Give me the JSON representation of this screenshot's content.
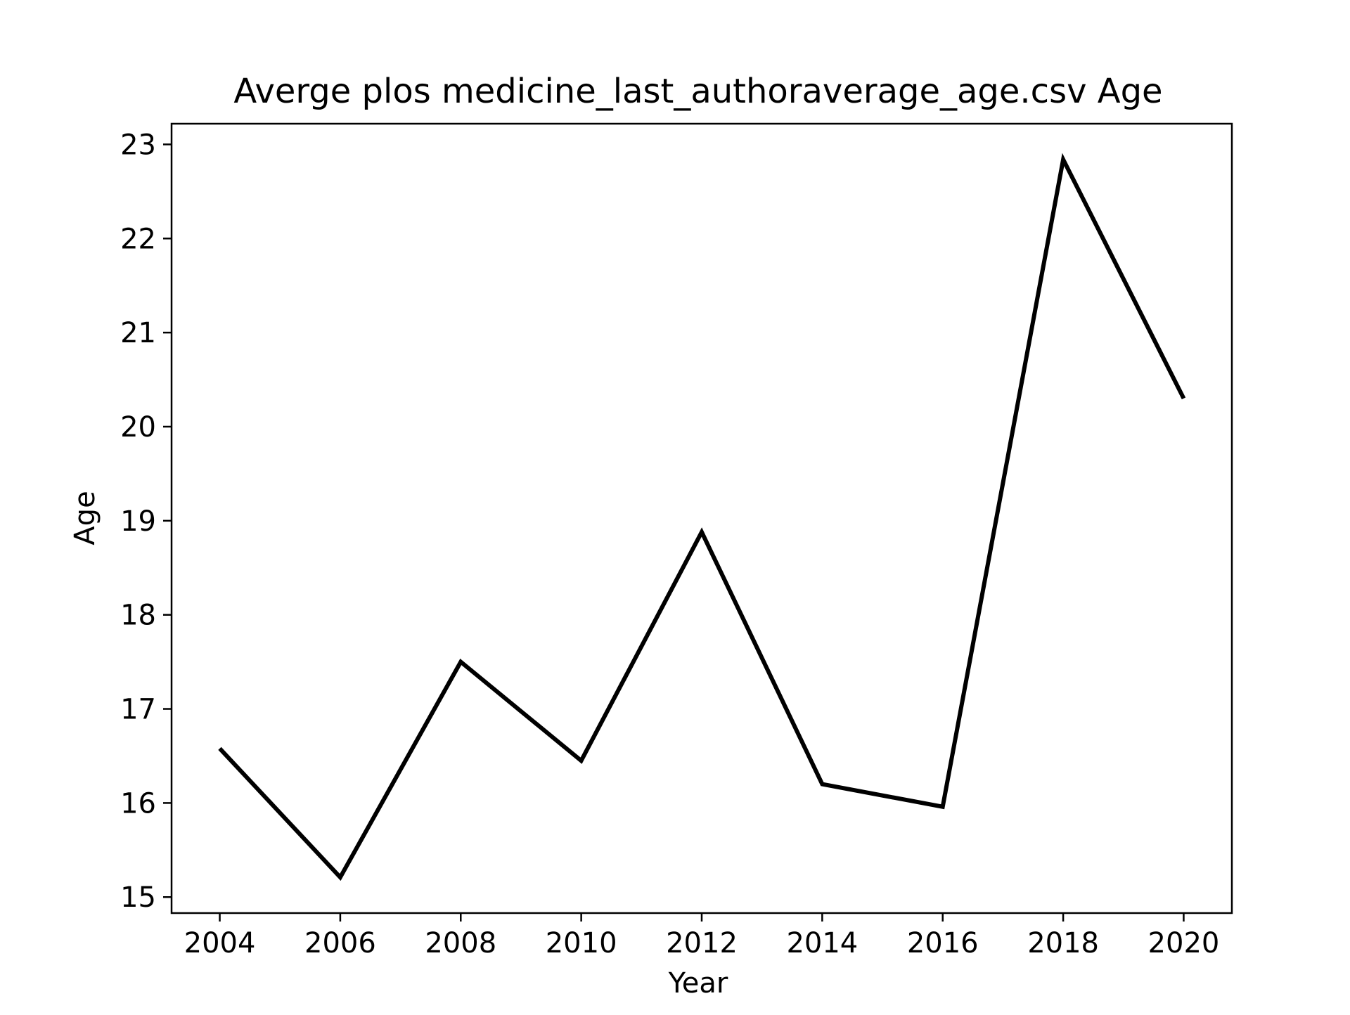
{
  "chart_data": {
    "type": "line",
    "title": "Averge plos medicine_last_authoraverage_age.csv Age",
    "xlabel": "Year",
    "ylabel": "Age",
    "x": [
      2004,
      2006,
      2008,
      2010,
      2012,
      2014,
      2016,
      2018,
      2020
    ],
    "series": [
      {
        "values": [
          16.58,
          15.21,
          17.5,
          16.45,
          18.88,
          16.2,
          15.96,
          22.84,
          20.3
        ],
        "color": "#000000"
      }
    ],
    "xlim": [
      2003.2,
      2020.8
    ],
    "ylim": [
      14.83,
      23.22
    ],
    "xticks": [
      "2004",
      "2006",
      "2008",
      "2010",
      "2012",
      "2014",
      "2016",
      "2018",
      "2020"
    ],
    "yticks": [
      "15",
      "16",
      "17",
      "18",
      "19",
      "20",
      "21",
      "22",
      "23"
    ],
    "grid": false,
    "legend": "none"
  }
}
